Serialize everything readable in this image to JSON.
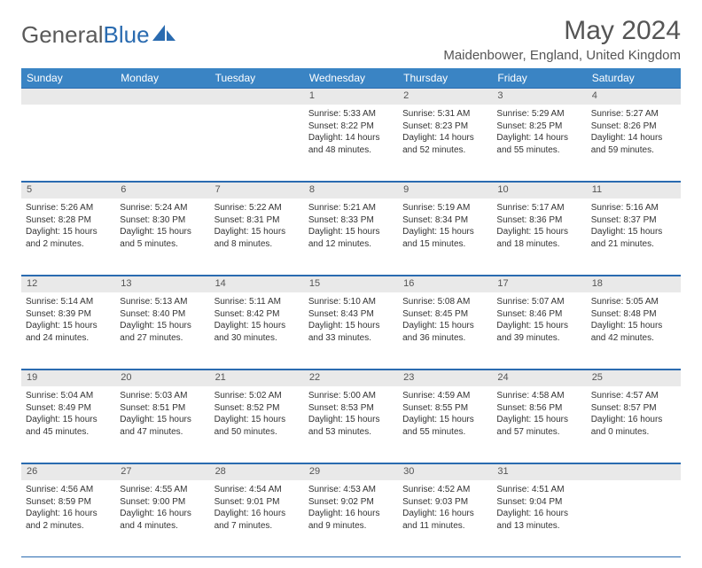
{
  "logo": {
    "text1": "General",
    "text2": "Blue"
  },
  "title": "May 2024",
  "location": "Maidenbower, England, United Kingdom",
  "day_headers": [
    "Sunday",
    "Monday",
    "Tuesday",
    "Wednesday",
    "Thursday",
    "Friday",
    "Saturday"
  ],
  "colors": {
    "header_bg": "#3a84c4",
    "daynum_bg": "#e9e9e9",
    "border": "#2a6bb0",
    "text_muted": "#555555"
  },
  "weeks": [
    {
      "nums": [
        "",
        "",
        "",
        "1",
        "2",
        "3",
        "4"
      ],
      "cells": [
        [],
        [],
        [],
        [
          "Sunrise: 5:33 AM",
          "Sunset: 8:22 PM",
          "Daylight: 14 hours",
          "and 48 minutes."
        ],
        [
          "Sunrise: 5:31 AM",
          "Sunset: 8:23 PM",
          "Daylight: 14 hours",
          "and 52 minutes."
        ],
        [
          "Sunrise: 5:29 AM",
          "Sunset: 8:25 PM",
          "Daylight: 14 hours",
          "and 55 minutes."
        ],
        [
          "Sunrise: 5:27 AM",
          "Sunset: 8:26 PM",
          "Daylight: 14 hours",
          "and 59 minutes."
        ]
      ]
    },
    {
      "nums": [
        "5",
        "6",
        "7",
        "8",
        "9",
        "10",
        "11"
      ],
      "cells": [
        [
          "Sunrise: 5:26 AM",
          "Sunset: 8:28 PM",
          "Daylight: 15 hours",
          "and 2 minutes."
        ],
        [
          "Sunrise: 5:24 AM",
          "Sunset: 8:30 PM",
          "Daylight: 15 hours",
          "and 5 minutes."
        ],
        [
          "Sunrise: 5:22 AM",
          "Sunset: 8:31 PM",
          "Daylight: 15 hours",
          "and 8 minutes."
        ],
        [
          "Sunrise: 5:21 AM",
          "Sunset: 8:33 PM",
          "Daylight: 15 hours",
          "and 12 minutes."
        ],
        [
          "Sunrise: 5:19 AM",
          "Sunset: 8:34 PM",
          "Daylight: 15 hours",
          "and 15 minutes."
        ],
        [
          "Sunrise: 5:17 AM",
          "Sunset: 8:36 PM",
          "Daylight: 15 hours",
          "and 18 minutes."
        ],
        [
          "Sunrise: 5:16 AM",
          "Sunset: 8:37 PM",
          "Daylight: 15 hours",
          "and 21 minutes."
        ]
      ]
    },
    {
      "nums": [
        "12",
        "13",
        "14",
        "15",
        "16",
        "17",
        "18"
      ],
      "cells": [
        [
          "Sunrise: 5:14 AM",
          "Sunset: 8:39 PM",
          "Daylight: 15 hours",
          "and 24 minutes."
        ],
        [
          "Sunrise: 5:13 AM",
          "Sunset: 8:40 PM",
          "Daylight: 15 hours",
          "and 27 minutes."
        ],
        [
          "Sunrise: 5:11 AM",
          "Sunset: 8:42 PM",
          "Daylight: 15 hours",
          "and 30 minutes."
        ],
        [
          "Sunrise: 5:10 AM",
          "Sunset: 8:43 PM",
          "Daylight: 15 hours",
          "and 33 minutes."
        ],
        [
          "Sunrise: 5:08 AM",
          "Sunset: 8:45 PM",
          "Daylight: 15 hours",
          "and 36 minutes."
        ],
        [
          "Sunrise: 5:07 AM",
          "Sunset: 8:46 PM",
          "Daylight: 15 hours",
          "and 39 minutes."
        ],
        [
          "Sunrise: 5:05 AM",
          "Sunset: 8:48 PM",
          "Daylight: 15 hours",
          "and 42 minutes."
        ]
      ]
    },
    {
      "nums": [
        "19",
        "20",
        "21",
        "22",
        "23",
        "24",
        "25"
      ],
      "cells": [
        [
          "Sunrise: 5:04 AM",
          "Sunset: 8:49 PM",
          "Daylight: 15 hours",
          "and 45 minutes."
        ],
        [
          "Sunrise: 5:03 AM",
          "Sunset: 8:51 PM",
          "Daylight: 15 hours",
          "and 47 minutes."
        ],
        [
          "Sunrise: 5:02 AM",
          "Sunset: 8:52 PM",
          "Daylight: 15 hours",
          "and 50 minutes."
        ],
        [
          "Sunrise: 5:00 AM",
          "Sunset: 8:53 PM",
          "Daylight: 15 hours",
          "and 53 minutes."
        ],
        [
          "Sunrise: 4:59 AM",
          "Sunset: 8:55 PM",
          "Daylight: 15 hours",
          "and 55 minutes."
        ],
        [
          "Sunrise: 4:58 AM",
          "Sunset: 8:56 PM",
          "Daylight: 15 hours",
          "and 57 minutes."
        ],
        [
          "Sunrise: 4:57 AM",
          "Sunset: 8:57 PM",
          "Daylight: 16 hours",
          "and 0 minutes."
        ]
      ]
    },
    {
      "nums": [
        "26",
        "27",
        "28",
        "29",
        "30",
        "31",
        ""
      ],
      "cells": [
        [
          "Sunrise: 4:56 AM",
          "Sunset: 8:59 PM",
          "Daylight: 16 hours",
          "and 2 minutes."
        ],
        [
          "Sunrise: 4:55 AM",
          "Sunset: 9:00 PM",
          "Daylight: 16 hours",
          "and 4 minutes."
        ],
        [
          "Sunrise: 4:54 AM",
          "Sunset: 9:01 PM",
          "Daylight: 16 hours",
          "and 7 minutes."
        ],
        [
          "Sunrise: 4:53 AM",
          "Sunset: 9:02 PM",
          "Daylight: 16 hours",
          "and 9 minutes."
        ],
        [
          "Sunrise: 4:52 AM",
          "Sunset: 9:03 PM",
          "Daylight: 16 hours",
          "and 11 minutes."
        ],
        [
          "Sunrise: 4:51 AM",
          "Sunset: 9:04 PM",
          "Daylight: 16 hours",
          "and 13 minutes."
        ],
        []
      ]
    }
  ]
}
